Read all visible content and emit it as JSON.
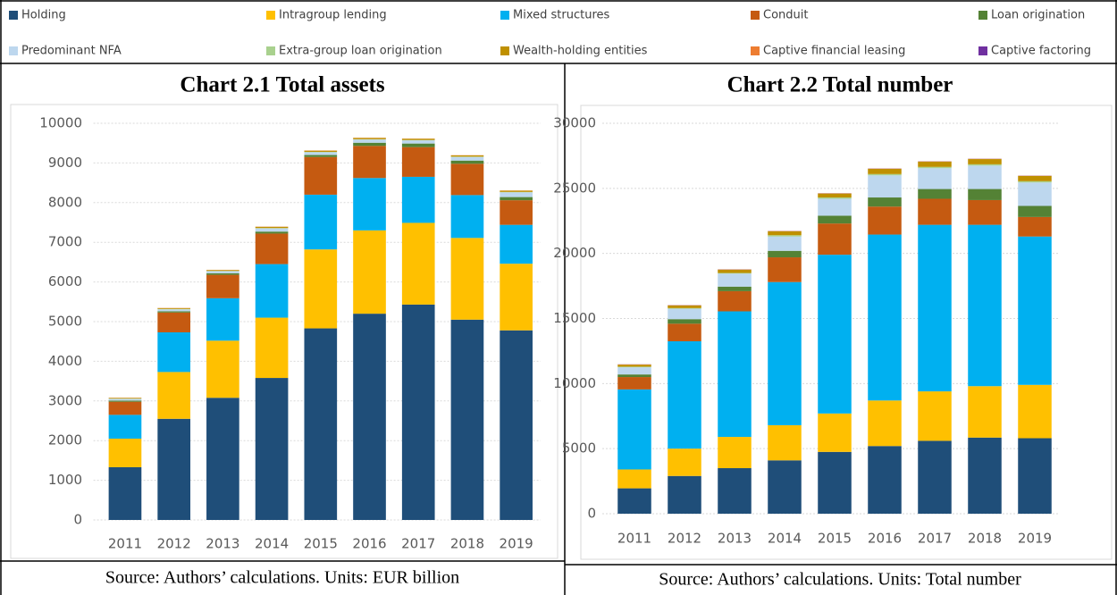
{
  "chart_data": [
    {
      "type": "stacked_bar",
      "title": "Chart 2.1 Total assets",
      "note": "Source: Authors’ calculations. Units: EUR billion",
      "categories": [
        "2011",
        "2012",
        "2013",
        "2014",
        "2015",
        "2016",
        "2017",
        "2018",
        "2019"
      ],
      "ylim": [
        0,
        10000
      ],
      "yticks": [
        0,
        1000,
        2000,
        3000,
        4000,
        5000,
        6000,
        7000,
        8000,
        9000,
        10000
      ],
      "grid": true,
      "series": [
        {
          "name": "Holding",
          "color": "#1f4e79",
          "values": [
            1330,
            2550,
            3080,
            3580,
            4830,
            5200,
            5430,
            5050,
            4780
          ]
        },
        {
          "name": "Intragroup lending",
          "color": "#ffc000",
          "values": [
            720,
            1180,
            1440,
            1520,
            1990,
            2100,
            2060,
            2060,
            1680
          ]
        },
        {
          "name": "Mixed structures",
          "color": "#00b0f0",
          "values": [
            600,
            1000,
            1070,
            1350,
            1380,
            1320,
            1160,
            1080,
            980
          ]
        },
        {
          "name": "Conduit",
          "color": "#c55a11",
          "values": [
            330,
            500,
            590,
            770,
            950,
            810,
            750,
            790,
            620
          ]
        },
        {
          "name": "Loan origination",
          "color": "#548235",
          "values": [
            30,
            30,
            40,
            50,
            50,
            80,
            90,
            80,
            80
          ]
        },
        {
          "name": "Predominant NFA",
          "color": "#bdd7ee",
          "values": [
            40,
            50,
            50,
            80,
            70,
            80,
            80,
            90,
            120
          ]
        },
        {
          "name": "Extra-group loan origination",
          "color": "#a9d18e",
          "values": [
            10,
            10,
            10,
            10,
            10,
            10,
            10,
            10,
            10
          ]
        },
        {
          "name": "Wealth-holding entities",
          "color": "#bf9000",
          "values": [
            15,
            20,
            20,
            30,
            30,
            30,
            30,
            30,
            30
          ]
        },
        {
          "name": "Captive financial leasing",
          "color": "#ed7d31",
          "values": [
            5,
            5,
            5,
            5,
            5,
            5,
            5,
            5,
            5
          ]
        },
        {
          "name": "Captive factoring",
          "color": "#7030a0",
          "values": [
            0,
            0,
            0,
            0,
            0,
            0,
            0,
            0,
            0
          ]
        }
      ]
    },
    {
      "type": "stacked_bar",
      "title": "Chart 2.2 Total number",
      "note": "Source: Authors’ calculations. Units: Total number",
      "categories": [
        "2011",
        "2012",
        "2013",
        "2014",
        "2015",
        "2016",
        "2017",
        "2018",
        "2019"
      ],
      "ylim": [
        0,
        30000
      ],
      "yticks": [
        0,
        5000,
        10000,
        15000,
        20000,
        25000,
        30000
      ],
      "grid": true,
      "series": [
        {
          "color": "#1f4e79",
          "values": [
            1950,
            2900,
            3500,
            4100,
            4750,
            5200,
            5600,
            5850,
            5800
          ]
        },
        {
          "color": "#ffc000",
          "values": [
            1450,
            2100,
            2400,
            2700,
            2950,
            3500,
            3800,
            3950,
            4100
          ]
        },
        {
          "color": "#00b0f0",
          "values": [
            6150,
            8250,
            9650,
            11000,
            12200,
            12750,
            12800,
            12400,
            11400
          ]
        },
        {
          "color": "#c55a11",
          "values": [
            950,
            1350,
            1550,
            1900,
            2400,
            2150,
            2000,
            1900,
            1500
          ]
        },
        {
          "color": "#548235",
          "values": [
            200,
            350,
            350,
            500,
            600,
            700,
            750,
            850,
            850
          ]
        },
        {
          "color": "#bdd7ee",
          "values": [
            550,
            800,
            1000,
            1100,
            1300,
            1700,
            1600,
            1800,
            1800
          ]
        },
        {
          "color": "#a9d18e",
          "values": [
            50,
            50,
            50,
            100,
            100,
            100,
            100,
            100,
            100
          ]
        },
        {
          "color": "#bf9000",
          "values": [
            150,
            200,
            250,
            300,
            300,
            400,
            400,
            400,
            400
          ]
        },
        {
          "color": "#ed7d31",
          "values": [
            20,
            20,
            20,
            20,
            20,
            20,
            20,
            20,
            20
          ]
        },
        {
          "color": "#7030a0",
          "values": [
            10,
            10,
            10,
            10,
            10,
            10,
            10,
            10,
            10
          ]
        }
      ]
    }
  ]
}
